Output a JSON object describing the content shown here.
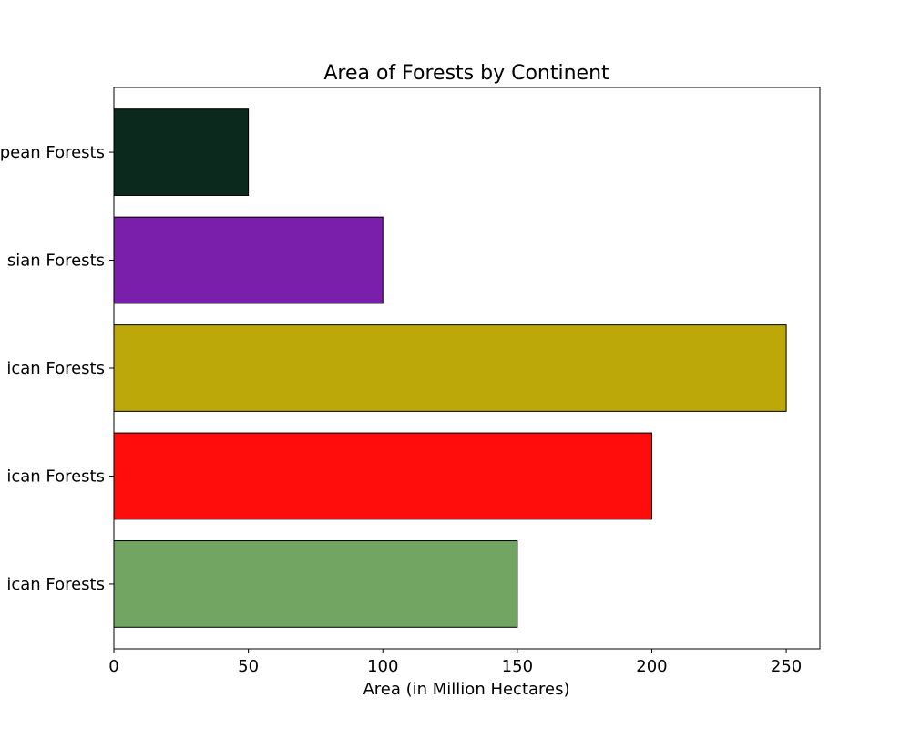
{
  "chart_data": {
    "type": "bar",
    "orientation": "horizontal",
    "title": "Area of Forests by Continent",
    "xlabel": "Area (in Million Hectares)",
    "ylabel": "",
    "categories": [
      "ican Forests",
      "ican Forests",
      "ican Forests",
      "sian Forests",
      "pean Forests"
    ],
    "values": [
      150,
      200,
      250,
      100,
      50
    ],
    "colors": [
      "#72a562",
      "#ff0d0d",
      "#bca808",
      "#7a1fab",
      "#0c291d"
    ],
    "edge_color": "#000000",
    "xlim": [
      0,
      262.5
    ],
    "xticks": [
      0,
      50,
      100,
      150,
      200,
      250
    ],
    "grid": false,
    "legend": "none"
  }
}
